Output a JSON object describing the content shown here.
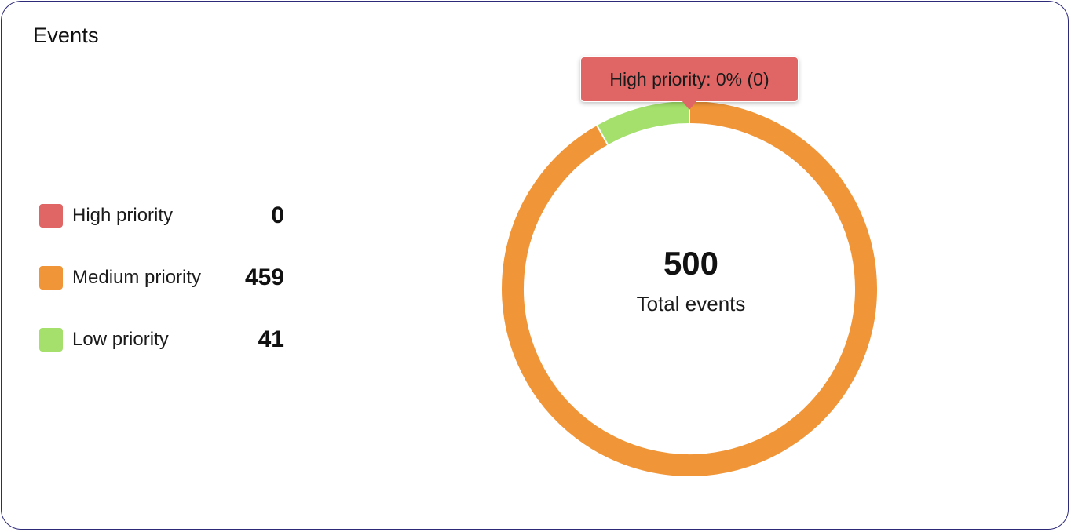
{
  "card": {
    "title": "Events"
  },
  "chart_data": {
    "type": "pie",
    "variant": "donut",
    "title": "Events",
    "categories": [
      "High priority",
      "Medium priority",
      "Low priority"
    ],
    "values": [
      0,
      459,
      41
    ],
    "colors": [
      "#e06666",
      "#f19638",
      "#a4e06b"
    ],
    "total": 500,
    "total_label": "Total events",
    "legend_placement": "left",
    "tooltip": {
      "text": "High priority: 0% (0)",
      "color": "#e06666"
    }
  },
  "legend": [
    {
      "label": "High priority",
      "value": "0",
      "color": "#e06666"
    },
    {
      "label": "Medium priority",
      "value": "459",
      "color": "#f19638"
    },
    {
      "label": "Low priority",
      "value": "41",
      "color": "#a4e06b"
    }
  ],
  "center": {
    "total": "500",
    "label": "Total events"
  }
}
